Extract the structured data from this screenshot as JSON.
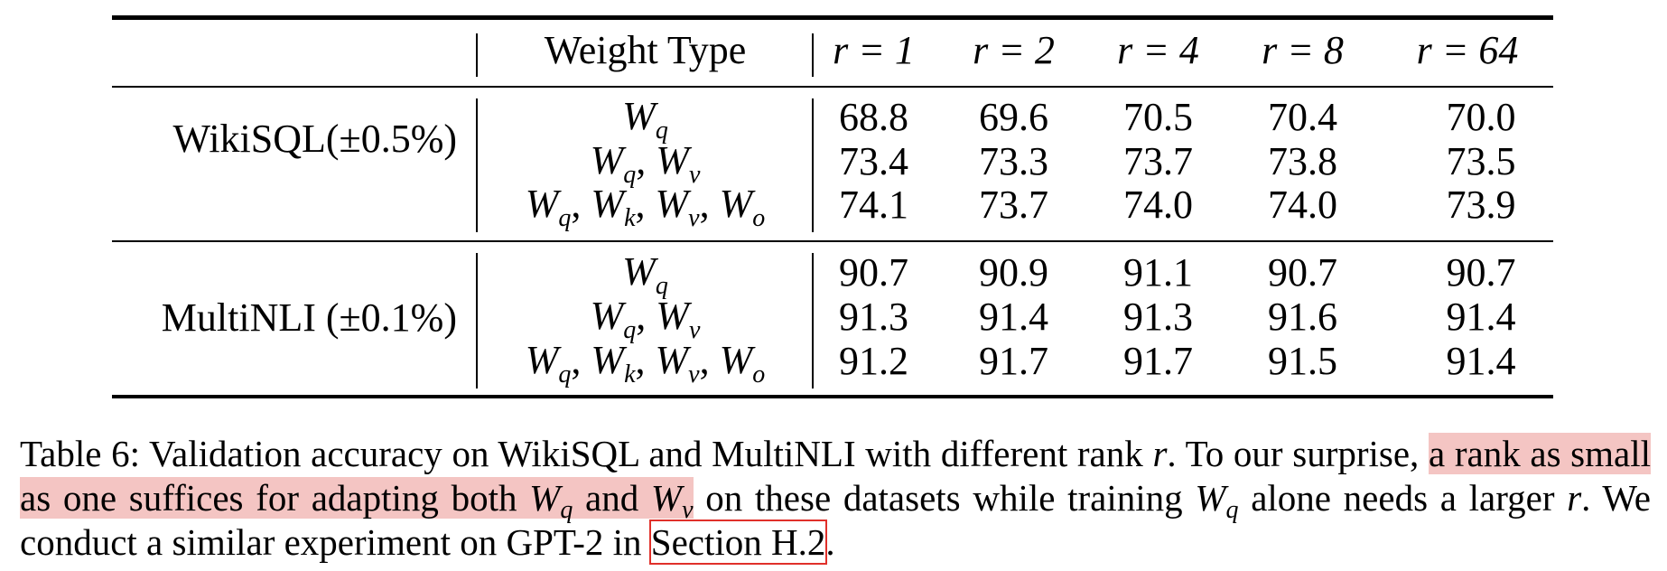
{
  "table": {
    "header": {
      "weight_type": "Weight Type",
      "ranks": [
        "r = 1",
        "r = 2",
        "r = 4",
        "r = 8",
        "r = 64"
      ]
    },
    "groups": [
      {
        "dataset": "WikiSQL(±0.5%)",
        "rows": [
          {
            "weight_type": "W_q",
            "values": [
              "68.8",
              "69.6",
              "70.5",
              "70.4",
              "70.0"
            ]
          },
          {
            "weight_type": "W_q, W_v",
            "values": [
              "73.4",
              "73.3",
              "73.7",
              "73.8",
              "73.5"
            ]
          },
          {
            "weight_type": "W_q, W_k, W_v, W_o",
            "values": [
              "74.1",
              "73.7",
              "74.0",
              "74.0",
              "73.9"
            ]
          }
        ]
      },
      {
        "dataset": "MultiNLI (±0.1%)",
        "rows": [
          {
            "weight_type": "W_q",
            "values": [
              "90.7",
              "90.9",
              "91.1",
              "90.7",
              "90.7"
            ]
          },
          {
            "weight_type": "W_q, W_v",
            "values": [
              "91.3",
              "91.4",
              "91.3",
              "91.6",
              "91.4"
            ]
          },
          {
            "weight_type": "W_q, W_k, W_v, W_o",
            "values": [
              "91.2",
              "91.7",
              "91.7",
              "91.5",
              "91.4"
            ]
          }
        ]
      }
    ]
  },
  "caption": {
    "part1": "Table 6: Validation accuracy on WikiSQL and MultiNLI with different rank ",
    "r1": "r",
    "part2": ". To our surprise, ",
    "highlight1": "a rank as small as one suffices for adapting both ",
    "wq": "W",
    "wq_sub": "q",
    "highlight2": " and ",
    "wv": "W",
    "wv_sub": "v",
    "part3": " on these datasets while training ",
    "wq2": "W",
    "wq2_sub": "q",
    "part4": " alone needs a larger ",
    "r2": "r",
    "part5": ". We conduct a similar experiment on GPT-2 in ",
    "link": "Section H.2",
    "part6": "."
  },
  "colors": {
    "highlight": "#f4c5c3",
    "link_box": "#e0302a"
  }
}
